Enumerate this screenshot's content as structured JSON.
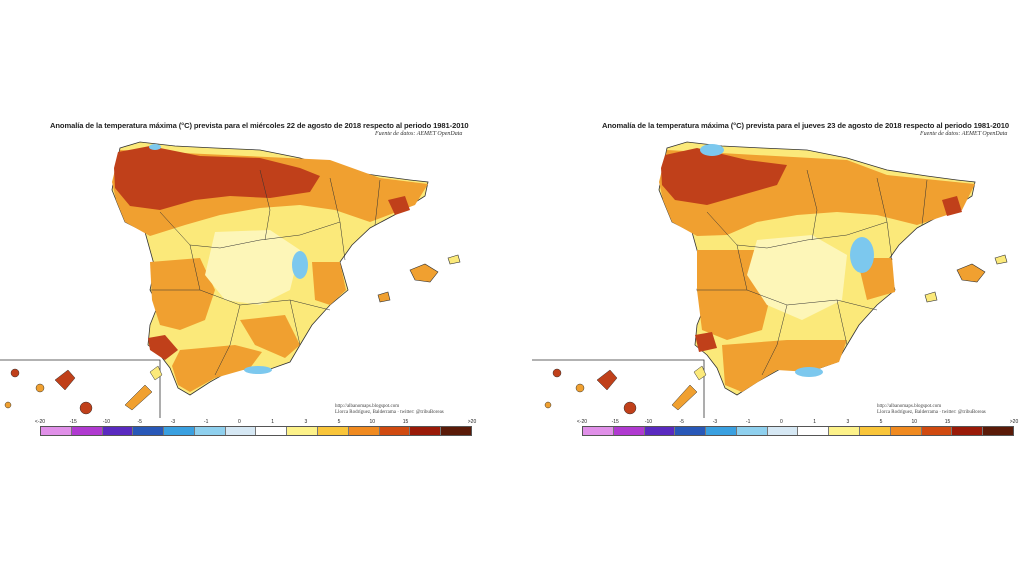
{
  "maps": [
    {
      "title": "Anomalía de la temperatura máxima (°C) prevista para el miércoles 22 de agosto de 2018 respecto al periodo 1981-2010",
      "source": "Fuente de datos: AEMET OpenData",
      "credit_line1": "http://albanomaps.blogspot.com",
      "credit_line2": "Llorca Rodríguez, Balderrama · twitter: @tribuBoreas"
    },
    {
      "title": "Anomalía de la temperatura máxima (°C) prevista para el jueves 23 de agosto de 2018 respecto al periodo 1981-2010",
      "source": "Fuente de datos: AEMET OpenData",
      "credit_line1": "http://albanomaps.blogspot.com",
      "credit_line2": "Llorca Rodríguez, Balderrama · twitter: @tribuBoreas"
    }
  ],
  "legend": {
    "labels": [
      "<-20",
      "-15",
      "-10",
      "-5",
      "-3",
      "-1",
      "0",
      "1",
      "3",
      "5",
      "10",
      "15",
      ">20"
    ],
    "colors": [
      "#e090e8",
      "#b03ad0",
      "#5a2ac0",
      "#2858b8",
      "#3aa0e0",
      "#8fd0ee",
      "#d6e8f4",
      "#ffffff",
      "#fdf28a",
      "#f9c53a",
      "#f08a20",
      "#d04a10",
      "#9a1a08",
      "#5a1a08"
    ]
  },
  "colors": {
    "dark_red": "#c0401a",
    "orange": "#f0a030",
    "yellow": "#fbe97a",
    "pale_yellow": "#fdf6b8",
    "blue": "#7cc8ee",
    "border": "#333333"
  }
}
